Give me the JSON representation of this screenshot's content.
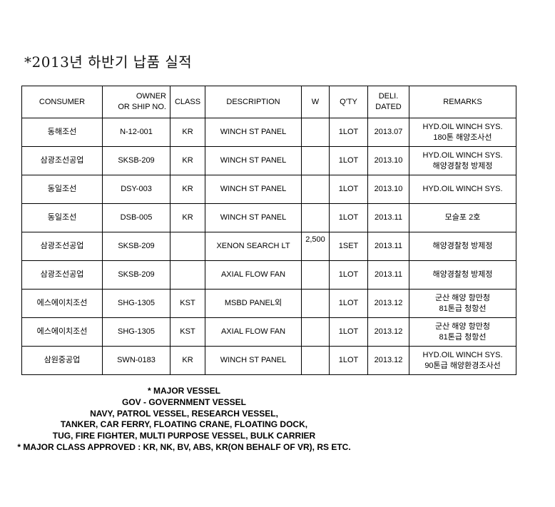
{
  "title": "*2013년 하반기 납품 실적",
  "table": {
    "column_keys": [
      "consumer",
      "owner-or-ship-no",
      "class",
      "description",
      "w",
      "qty",
      "deli-dated",
      "remarks"
    ],
    "headers": [
      {
        "lines": [
          "CONSUMER"
        ]
      },
      {
        "lines": [
          "OWNER",
          "OR SHIP NO."
        ],
        "align": "right"
      },
      {
        "lines": [
          "CLASS"
        ]
      },
      {
        "lines": [
          "DESCRIPTION"
        ]
      },
      {
        "lines": [
          "W"
        ]
      },
      {
        "lines": [
          "Q'TY"
        ]
      },
      {
        "lines": [
          "DELI.",
          "DATED"
        ]
      },
      {
        "lines": [
          "REMARKS"
        ]
      }
    ],
    "rows": [
      {
        "cells": [
          [
            "동해조선"
          ],
          [
            "N-12-001"
          ],
          [
            "KR"
          ],
          [
            "WINCH ST PANEL"
          ],
          [],
          [
            "1LOT"
          ],
          [
            "2013.07"
          ],
          [
            "HYD.OIL WINCH SYS.",
            "180톤 해양조사선"
          ]
        ]
      },
      {
        "cells": [
          [
            "삼광조선공업"
          ],
          [
            "SKSB-209"
          ],
          [
            "KR"
          ],
          [
            "WINCH ST PANEL"
          ],
          [],
          [
            "1LOT"
          ],
          [
            "2013.10"
          ],
          [
            "HYD.OIL WINCH SYS.",
            "해양경찰청 방제정"
          ]
        ]
      },
      {
        "cells": [
          [
            "동일조선"
          ],
          [
            "DSY-003"
          ],
          [
            "KR"
          ],
          [
            "WINCH ST PANEL"
          ],
          [],
          [
            "1LOT"
          ],
          [
            "2013.10"
          ],
          [
            "HYD.OIL WINCH SYS."
          ]
        ]
      },
      {
        "cells": [
          [
            "동일조선"
          ],
          [
            "DSB-005"
          ],
          [
            "KR"
          ],
          [
            "WINCH ST PANEL"
          ],
          [],
          [
            "1LOT"
          ],
          [
            "2013.11"
          ],
          [
            "모슬포 2호"
          ]
        ]
      },
      {
        "cells": [
          [
            "삼광조선공업"
          ],
          [
            "SKSB-209"
          ],
          [],
          [
            "XENON SEARCH LT"
          ],
          [
            "2,500"
          ],
          [
            "1SET"
          ],
          [
            "2013.11"
          ],
          [
            "해양경찰청 방제정"
          ]
        ]
      },
      {
        "cells": [
          [
            "삼광조선공업"
          ],
          [
            "SKSB-209"
          ],
          [],
          [
            "AXIAL FLOW FAN"
          ],
          [],
          [
            "1LOT"
          ],
          [
            "2013.11"
          ],
          [
            "해양경찰청 방제정"
          ]
        ]
      },
      {
        "cells": [
          [
            "에스에이치조선"
          ],
          [
            "SHG-1305"
          ],
          [
            "KST"
          ],
          [
            "MSBD PANEL외"
          ],
          [],
          [
            "1LOT"
          ],
          [
            "2013.12"
          ],
          [
            "군산 해양 항만청",
            "81톤급 청항선"
          ]
        ]
      },
      {
        "cells": [
          [
            "에스에이치조선"
          ],
          [
            "SHG-1305"
          ],
          [
            "KST"
          ],
          [
            "AXIAL FLOW FAN"
          ],
          [],
          [
            "1LOT"
          ],
          [
            "2013.12"
          ],
          [
            "군산 해양 항만청",
            "81톤급 청항선"
          ]
        ]
      },
      {
        "cells": [
          [
            "삼원중공업"
          ],
          [
            "SWN-0183"
          ],
          [
            "KR"
          ],
          [
            "WINCH ST PANEL"
          ],
          [],
          [
            "1LOT"
          ],
          [
            "2013.12"
          ],
          [
            "HYD.OIL WINCH SYS.",
            "90톤급 해양환경조사선"
          ]
        ]
      }
    ]
  },
  "footer": {
    "lines": [
      "* MAJOR VESSEL",
      "GOV - GOVERNMENT VESSEL",
      "NAVY, PATROL VESSEL, RESEARCH VESSEL,",
      "TANKER, CAR FERRY, FLOATING CRANE, FLOATING DOCK,",
      "TUG, FIRE FIGHTER, MULTI PURPOSE VESSEL, BULK CARRIER",
      "* MAJOR CLASS APPROVED : KR, NK, BV, ABS, KR(ON BEHALF OF VR), RS ETC."
    ]
  }
}
